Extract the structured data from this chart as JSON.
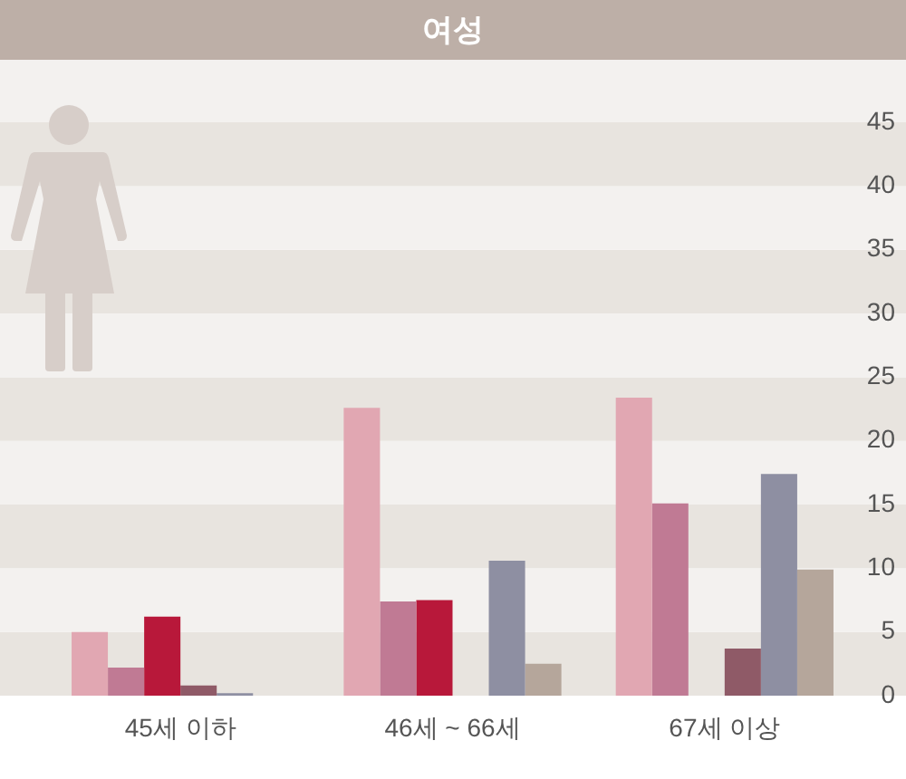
{
  "chart_data": {
    "type": "bar",
    "title": "여성",
    "categories": [
      "45세 이하",
      "46세 ~ 66세",
      "67세 이상"
    ],
    "series": [
      {
        "color": "#e1a7b2",
        "values": [
          5,
          22.6,
          23.4
        ]
      },
      {
        "color": "#c07a94",
        "values": [
          2.2,
          7.4,
          15.1
        ]
      },
      {
        "color": "#b8183a",
        "values": [
          6.2,
          7.5,
          null
        ]
      },
      {
        "color": "#8f5a67",
        "values": [
          0.8,
          null,
          3.7
        ]
      },
      {
        "color": "#8e8fa2",
        "values": [
          0.2,
          10.6,
          17.4
        ]
      },
      {
        "color": "#b5a69b",
        "values": [
          null,
          2.5,
          9.9
        ]
      }
    ],
    "ylim": [
      0,
      50
    ],
    "yticks": [
      0,
      5,
      10,
      15,
      20,
      25,
      30,
      35,
      40,
      45
    ],
    "legend": false
  }
}
